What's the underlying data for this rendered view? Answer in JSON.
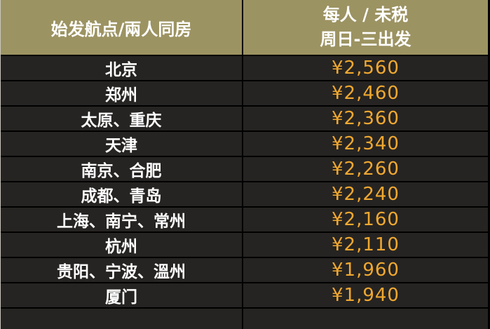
{
  "table": {
    "header": {
      "origin_label": "始发航点/兩人同房",
      "price_label_line1": "每人 / 未税",
      "price_label_line2": "周日-三出发"
    },
    "rows": [
      {
        "cities": "北京",
        "price": "¥2,560"
      },
      {
        "cities": "郑州",
        "price": "¥2,460"
      },
      {
        "cities": "太原、重庆",
        "price": "¥2,360"
      },
      {
        "cities": "天津",
        "price": "¥2,340"
      },
      {
        "cities": "南京、合肥",
        "price": "¥2,260"
      },
      {
        "cities": "成都、青岛",
        "price": "¥2,240"
      },
      {
        "cities": "上海、南宁、常州",
        "price": "¥2,160"
      },
      {
        "cities": "杭州",
        "price": "¥2,110"
      },
      {
        "cities": "贵阳、宁波、溫州",
        "price": "¥1,960"
      },
      {
        "cities": "厦门",
        "price": "¥1,940"
      }
    ]
  },
  "colors": {
    "header_background": "#9c9362",
    "header_text": "#ffffff",
    "row_background": "#262422",
    "gridline": "#000000",
    "city_text": "#ffffff",
    "price_text": "#f0a830"
  },
  "chart_data": {
    "type": "table",
    "columns": [
      "始发航点/兩人同房",
      "每人 / 未税 周日-三出发"
    ],
    "rows": [
      [
        "北京",
        "¥2,560"
      ],
      [
        "郑州",
        "¥2,460"
      ],
      [
        "太原、重庆",
        "¥2,360"
      ],
      [
        "天津",
        "¥2,340"
      ],
      [
        "南京、合肥",
        "¥2,260"
      ],
      [
        "成都、青岛",
        "¥2,240"
      ],
      [
        "上海、南宁、常州",
        "¥2,160"
      ],
      [
        "杭州",
        "¥2,110"
      ],
      [
        "贵阳、宁波、溫州",
        "¥1,960"
      ],
      [
        "厦门",
        "¥1,940"
      ]
    ]
  }
}
